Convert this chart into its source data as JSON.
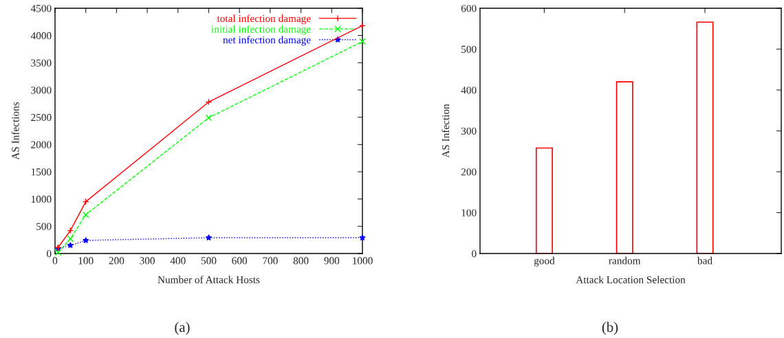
{
  "chart_data": [
    {
      "type": "line",
      "xlabel": "Number of Attack Hosts",
      "ylabel": "AS Infections",
      "x": [
        10,
        50,
        100,
        500,
        1000
      ],
      "series": [
        {
          "name": "total infection damage",
          "color": "#ff0000",
          "marker": "plus",
          "line_style": "solid",
          "values": [
            110,
            420,
            950,
            2780,
            4180
          ]
        },
        {
          "name": "initial infection damage",
          "color": "#00ff00",
          "marker": "cross",
          "line_style": "dashed",
          "values": [
            20,
            270,
            710,
            2490,
            3890
          ]
        },
        {
          "name": "net infection damage",
          "color": "#0000ff",
          "marker": "star",
          "line_style": "dotted",
          "values": [
            90,
            150,
            240,
            290,
            290
          ]
        }
      ],
      "xlim": [
        0,
        1000
      ],
      "xticks": [
        0,
        100,
        200,
        300,
        400,
        500,
        600,
        700,
        800,
        900,
        1000
      ],
      "ylim": [
        0,
        4500
      ],
      "yticks": [
        0,
        500,
        1000,
        1500,
        2000,
        2500,
        3000,
        3500,
        4000,
        4500
      ],
      "legend": "top right",
      "annotations": [
        "(a)"
      ]
    },
    {
      "type": "bar",
      "xlabel": "Attack Location Selection",
      "ylabel": "AS Infection",
      "categories": [
        "good",
        "random",
        "bad"
      ],
      "values": [
        258,
        420,
        566
      ],
      "color": "#ff0000",
      "ylim": [
        0,
        600
      ],
      "yticks": [
        0,
        100,
        200,
        300,
        400,
        500,
        600
      ],
      "annotations": [
        "(b)"
      ]
    }
  ]
}
